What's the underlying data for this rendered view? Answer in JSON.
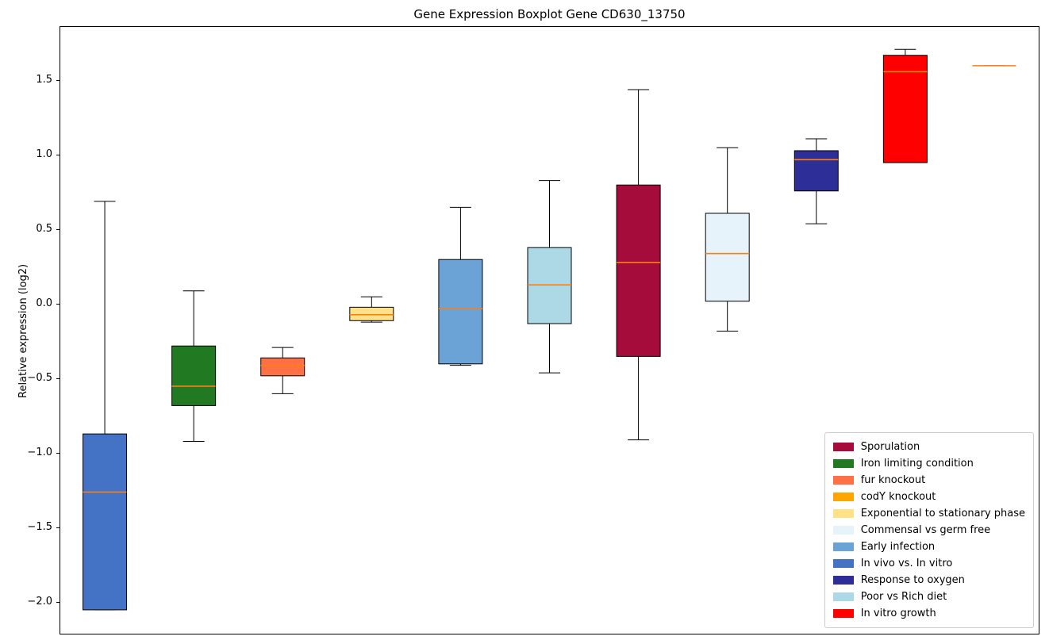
{
  "chart_data": {
    "type": "boxplot",
    "title": "Gene Expression Boxplot Gene CD630_13750",
    "ylabel": "Relative expression (log2)",
    "ylim": [
      -2.21,
      1.86
    ],
    "grid": false,
    "median_color": "#ff7f0e",
    "yticks": [
      {
        "value": 1.5,
        "label": "1.5"
      },
      {
        "value": 1.0,
        "label": "1.0"
      },
      {
        "value": 0.5,
        "label": "0.5"
      },
      {
        "value": 0.0,
        "label": "0.0"
      },
      {
        "value": -0.5,
        "label": "−0.5"
      },
      {
        "value": -1.0,
        "label": "−1.0"
      },
      {
        "value": -1.5,
        "label": "−1.5"
      },
      {
        "value": -2.0,
        "label": "−2.0"
      }
    ],
    "groups": [
      {
        "label": "In vivo vs. In vitro",
        "color": "#4472C4",
        "whislo": -2.05,
        "q1": -2.05,
        "med": -1.26,
        "q3": -0.87,
        "whishi": 0.69
      },
      {
        "label": "Iron limiting condition",
        "color": "#217A21",
        "whislo": -0.92,
        "q1": -0.68,
        "med": -0.55,
        "q3": -0.28,
        "whishi": 0.09
      },
      {
        "label": "fur knockout",
        "color": "#FF7047",
        "whislo": -0.6,
        "q1": -0.48,
        "med": -0.41,
        "q3": -0.36,
        "whishi": -0.29
      },
      {
        "label": "Exponential to stationary phase",
        "color": "#FFE18A",
        "whislo": -0.12,
        "q1": -0.11,
        "med": -0.07,
        "q3": -0.02,
        "whishi": 0.05
      },
      {
        "label": "Early infection",
        "color": "#6BA3D6",
        "whislo": -0.41,
        "q1": -0.4,
        "med": -0.03,
        "q3": 0.3,
        "whishi": 0.65
      },
      {
        "label": "Poor vs Rich diet",
        "color": "#ADD8E6",
        "whislo": -0.46,
        "q1": -0.13,
        "med": 0.13,
        "q3": 0.38,
        "whishi": 0.83
      },
      {
        "label": "Sporulation",
        "color": "#A60C3B",
        "whislo": -0.91,
        "q1": -0.35,
        "med": 0.28,
        "q3": 0.8,
        "whishi": 1.44
      },
      {
        "label": "Commensal vs germ free",
        "color": "#E7F3FA",
        "whislo": -0.18,
        "q1": 0.02,
        "med": 0.34,
        "q3": 0.61,
        "whishi": 1.05
      },
      {
        "label": "Response to oxygen",
        "color": "#2E2E99",
        "whislo": 0.54,
        "q1": 0.76,
        "med": 0.97,
        "q3": 1.03,
        "whishi": 1.11
      },
      {
        "label": "In vitro growth",
        "color": "#FF0000",
        "whislo": 0.95,
        "q1": 0.95,
        "med": 1.56,
        "q3": 1.67,
        "whishi": 1.71
      },
      {
        "label": "codY knockout",
        "color": "#FFA500",
        "whislo": 1.6,
        "q1": 1.6,
        "med": 1.6,
        "q3": 1.6,
        "whishi": 1.6
      }
    ],
    "legend": {
      "position": "lower right",
      "entries": [
        {
          "label": "Sporulation",
          "color": "#A60C3B"
        },
        {
          "label": "Iron limiting condition",
          "color": "#217A21"
        },
        {
          "label": "fur knockout",
          "color": "#FF7047"
        },
        {
          "label": "codY knockout",
          "color": "#FFA500"
        },
        {
          "label": "Exponential to stationary phase",
          "color": "#FFE18A"
        },
        {
          "label": "Commensal vs germ free",
          "color": "#E7F3FA"
        },
        {
          "label": "Early infection",
          "color": "#6BA3D6"
        },
        {
          "label": "In vivo vs. In vitro",
          "color": "#4472C4"
        },
        {
          "label": "Response to oxygen",
          "color": "#2E2E99"
        },
        {
          "label": "Poor vs Rich diet",
          "color": "#ADD8E6"
        },
        {
          "label": "In vitro growth",
          "color": "#FF0000"
        }
      ]
    }
  }
}
